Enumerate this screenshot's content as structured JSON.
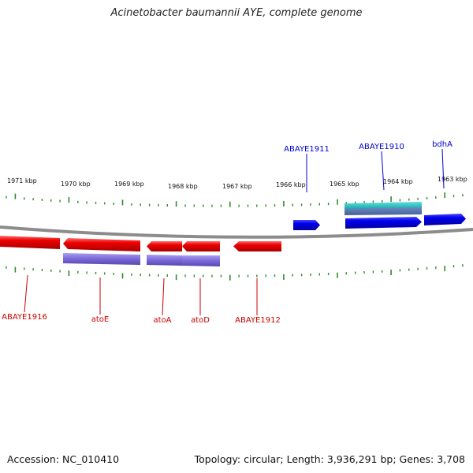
{
  "title": "Acinetobacter baumannii AYE, complete genome",
  "footer": {
    "accession": "Accession: NC_010410",
    "summary": "Topology: circular; Length: 3,936,291 bp; Genes: 3,708"
  },
  "colors": {
    "backbone": "#8c8c8c",
    "tick": "#2e8b2e",
    "forward_label": "#0000cc",
    "reverse_label": "#cc0000",
    "gene_forward": "#0000ee",
    "gene_reverse": "#ee0000",
    "cds": "#7b68d8",
    "rna": "#22b8b8"
  },
  "scale_labels": [
    "1971 kbp",
    "1970 kbp",
    "1969 kbp",
    "1968 kbp",
    "1967 kbp",
    "1966 kbp",
    "1965 kbp",
    "1964 kbp",
    "1963 kbp"
  ],
  "top_labels": [
    "ABAYE1911",
    "ABAYE1910",
    "bdhA"
  ],
  "bottom_labels": [
    "ABAYE1916",
    "atoE",
    "atoA",
    "atoD",
    "ABAYE1912"
  ]
}
